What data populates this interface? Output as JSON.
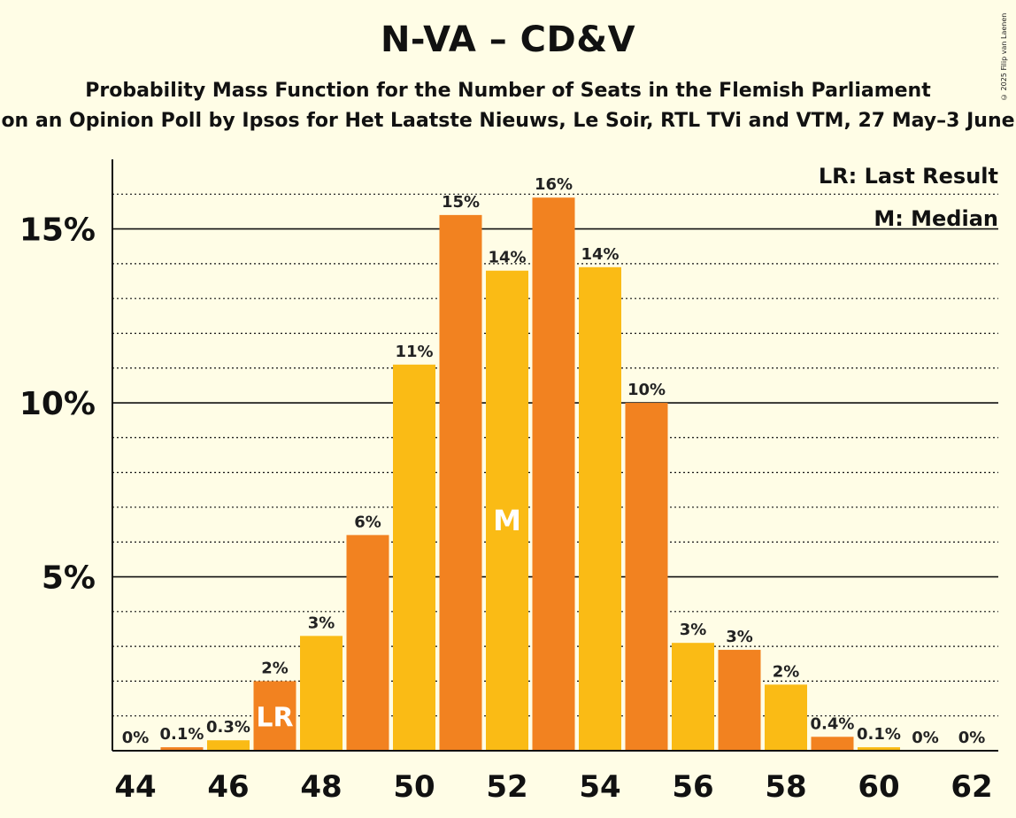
{
  "title": "N-VA – CD&V",
  "subtitle": "Probability Mass Function for the Number of Seats in the Flemish Parliament",
  "source": "on an Opinion Poll by Ipsos for Het Laatste Nieuws, Le Soir, RTL TVi and VTM, 27 May–3 June",
  "copyright": "© 2025 Filip van Laenen",
  "legend": {
    "last_result": "LR: Last Result",
    "median": "M: Median"
  },
  "colors": {
    "orange": "#F28220",
    "yellow": "#FABB15",
    "background": "#FFFDE6",
    "text": "#111111"
  },
  "chart_data": {
    "type": "bar",
    "categories": [
      44,
      45,
      46,
      47,
      48,
      49,
      50,
      51,
      52,
      53,
      54,
      55,
      56,
      57,
      58,
      59,
      60,
      61,
      62
    ],
    "values": [
      0,
      0.1,
      0.3,
      2.0,
      3.3,
      6.2,
      11.1,
      15.4,
      13.8,
      15.9,
      13.9,
      10.0,
      3.1,
      2.9,
      1.9,
      0.4,
      0.1,
      0,
      0
    ],
    "value_labels": [
      "0%",
      "0.1%",
      "0.3%",
      "2%",
      "3%",
      "6%",
      "11%",
      "15%",
      "14%",
      "16%",
      "14%",
      "10%",
      "3%",
      "3%",
      "2%",
      "0.4%",
      "0.1%",
      "0%",
      "0%"
    ],
    "x_tick_labels": [
      "44",
      "46",
      "48",
      "50",
      "52",
      "54",
      "56",
      "58",
      "60",
      "62"
    ],
    "y_ticks": [
      5,
      10,
      15
    ],
    "y_tick_labels": [
      "5%",
      "10%",
      "15%"
    ],
    "ylim": [
      0,
      17
    ],
    "minor_grid_step": 1,
    "last_result": {
      "seat": 47,
      "label": "LR"
    },
    "median": {
      "seat": 52,
      "label": "M"
    },
    "legend_position": "top-right",
    "xlabel": "",
    "ylabel": ""
  }
}
